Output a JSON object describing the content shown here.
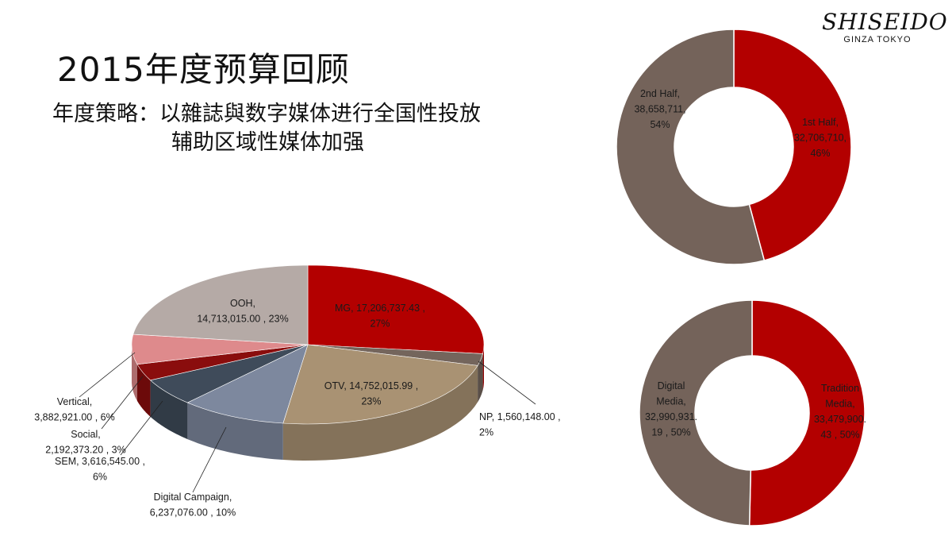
{
  "title": "2015年度预算回顾",
  "strategy": {
    "line1": "年度策略：以雜誌與数字媒体进行全国性投放",
    "line2": "辅助区域性媒体加强"
  },
  "logo": {
    "brand": "SHISEIDO",
    "sub": "GINZA TOKYO"
  },
  "chart_data": [
    {
      "type": "pie",
      "style": "3d",
      "slices": [
        {
          "name": "MG",
          "value": 17206737.43,
          "percent": 27,
          "color": "#B30000",
          "label_lines": [
            "MG,  17,206,737.43 ,",
            "27%"
          ]
        },
        {
          "name": "NP",
          "value": 1560148.0,
          "percent": 2,
          "color": "#74655C",
          "label_lines": [
            "NP,  1,560,148.00 ,",
            "2%"
          ]
        },
        {
          "name": "OTV",
          "value": 14752015.99,
          "percent": 23,
          "color": "#A99273",
          "label_lines": [
            "OTV,  14,752,015.99 ,",
            "23%"
          ]
        },
        {
          "name": "Digital Campaign",
          "value": 6237076.0,
          "percent": 10,
          "color": "#7D889E",
          "label_lines": [
            "Digital Campaign,",
            "6,237,076.00 , 10%"
          ]
        },
        {
          "name": "SEM",
          "value": 3616545.0,
          "percent": 6,
          "color": "#3F4B5A",
          "label_lines": [
            "SEM,  3,616,545.00 ,",
            "6%"
          ]
        },
        {
          "name": "Social",
          "value": 2192373.2,
          "percent": 3,
          "color": "#8A0D0D",
          "label_lines": [
            "Social,",
            "2,192,373.20 , 3%"
          ]
        },
        {
          "name": "Vertical",
          "value": 3882921.0,
          "percent": 6,
          "color": "#DE8A8C",
          "label_lines": [
            "Vertical,",
            "3,882,921.00 , 6%"
          ]
        },
        {
          "name": "OOH",
          "value": 14713015.0,
          "percent": 23,
          "color": "#B5AAA6",
          "label_lines": [
            "OOH,",
            "14,713,015.00 , 23%"
          ]
        }
      ]
    },
    {
      "type": "pie",
      "style": "donut",
      "slices": [
        {
          "name": "1st Half",
          "value": 32706710,
          "percent": 46,
          "color": "#B30000",
          "label_lines": [
            "1st Half,",
            "32,706,710,",
            "46%"
          ]
        },
        {
          "name": "2nd Half",
          "value": 38658711,
          "percent": 54,
          "color": "#74635A",
          "label_lines": [
            "2nd Half,",
            "38,658,711,",
            "54%"
          ]
        }
      ]
    },
    {
      "type": "pie",
      "style": "donut",
      "slices": [
        {
          "name": "Tradition Media",
          "value": 33479900.43,
          "percent": 50,
          "color": "#B30000",
          "label_lines": [
            "Tradition",
            "Media,",
            "33,479,900.",
            "43 , 50%"
          ]
        },
        {
          "name": "Digital Media",
          "value": 32990931.19,
          "percent": 50,
          "color": "#74635A",
          "label_lines": [
            "Digital",
            "Media,",
            "32,990,931.",
            "19 , 50%"
          ]
        }
      ]
    }
  ]
}
